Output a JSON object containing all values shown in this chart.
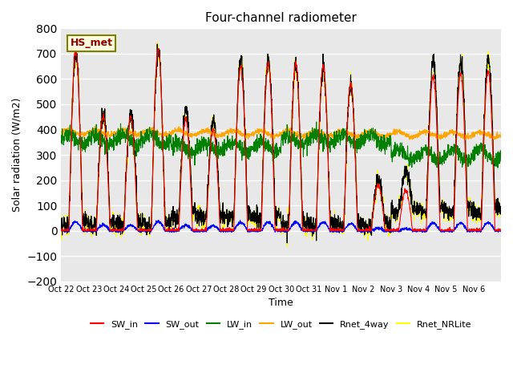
{
  "title": "Four-channel radiometer",
  "xlabel": "Time",
  "ylabel": "Solar radiation (W/m2)",
  "ylim": [
    -200,
    800
  ],
  "yticks": [
    -200,
    -100,
    0,
    100,
    200,
    300,
    400,
    500,
    600,
    700,
    800
  ],
  "xtick_labels": [
    "Oct 22",
    "Oct 23",
    "Oct 24",
    "Oct 25",
    "Oct 26",
    "Oct 27",
    "Oct 28",
    "Oct 29",
    "Oct 30",
    "Oct 31",
    "Nov 1",
    "Nov 2",
    "Nov 3",
    "Nov 4",
    "Nov 5",
    "Nov 6"
  ],
  "legend_labels": [
    "SW_in",
    "SW_out",
    "LW_in",
    "LW_out",
    "Rnet_4way",
    "Rnet_NRLite"
  ],
  "legend_colors": [
    "red",
    "blue",
    "green",
    "orange",
    "black",
    "yellow"
  ],
  "station_label": "HS_met",
  "background_color": "#e8e8e8",
  "grid_color": "white",
  "n_days": 16,
  "pts_per_day": 144,
  "peaks_sw": [
    710,
    450,
    450,
    720,
    440,
    400,
    650,
    660,
    660,
    650,
    580,
    180,
    160,
    610,
    620,
    630
  ],
  "lw_in_base": 390,
  "lw_out_base": 360
}
